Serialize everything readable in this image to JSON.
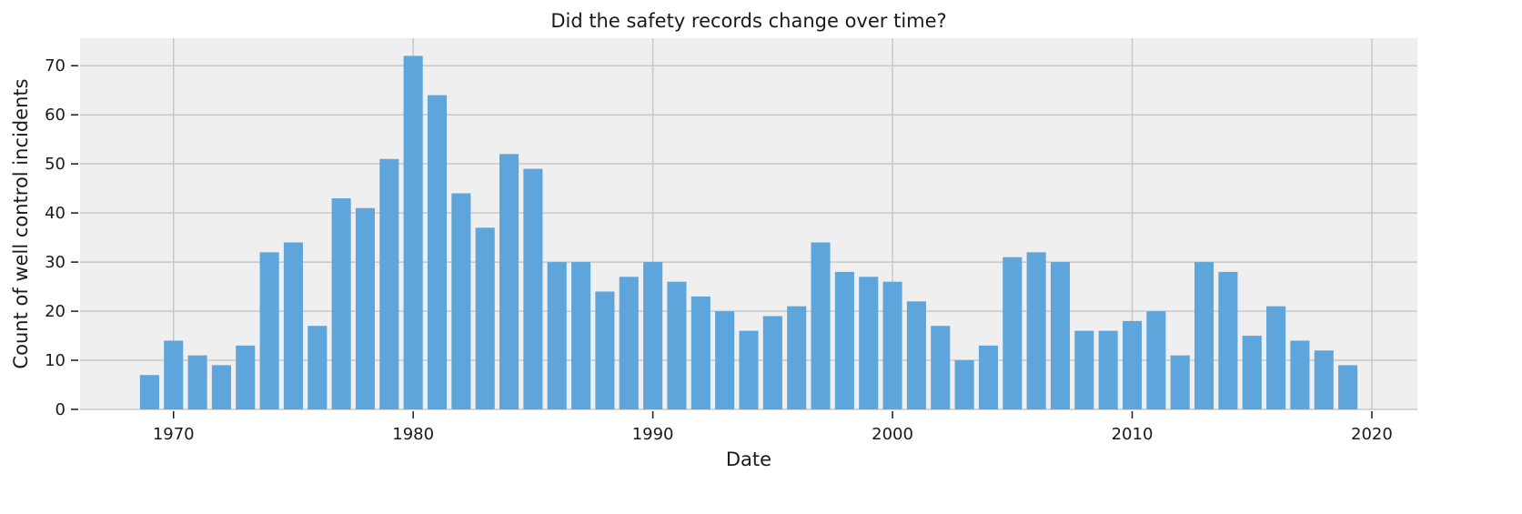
{
  "chart_data": {
    "type": "bar",
    "title": "Did the safety records change over time?",
    "xlabel": "Date",
    "ylabel": "Count of well control incidents",
    "x_ticks": [
      "1970",
      "1980",
      "1990",
      "2000",
      "2010",
      "2020"
    ],
    "y_ticks": [
      "0",
      "10",
      "20",
      "30",
      "40",
      "50",
      "60",
      "70"
    ],
    "xlim": [
      1966.1,
      2021.9
    ],
    "ylim": [
      0,
      75.6
    ],
    "grid": true,
    "colors": {
      "bar": "#5da5da",
      "background": "#efefef",
      "grid": "#c8c8c8",
      "axis": "#1a1a1a"
    },
    "categories": [
      1969,
      1970,
      1971,
      1972,
      1973,
      1974,
      1975,
      1976,
      1977,
      1978,
      1979,
      1980,
      1981,
      1982,
      1983,
      1984,
      1985,
      1986,
      1987,
      1988,
      1989,
      1990,
      1991,
      1992,
      1993,
      1994,
      1995,
      1996,
      1997,
      1998,
      1999,
      2000,
      2001,
      2002,
      2003,
      2004,
      2005,
      2006,
      2007,
      2008,
      2009,
      2010,
      2011,
      2012,
      2013,
      2014,
      2015,
      2016,
      2017,
      2018,
      2019
    ],
    "values": [
      7,
      14,
      11,
      9,
      13,
      32,
      34,
      17,
      43,
      41,
      51,
      72,
      64,
      44,
      37,
      52,
      49,
      30,
      30,
      24,
      27,
      30,
      26,
      23,
      20,
      16,
      19,
      21,
      34,
      28,
      27,
      26,
      22,
      17,
      10,
      13,
      31,
      32,
      30,
      16,
      16,
      18,
      20,
      11,
      30,
      28,
      15,
      21,
      14,
      12,
      9
    ]
  }
}
